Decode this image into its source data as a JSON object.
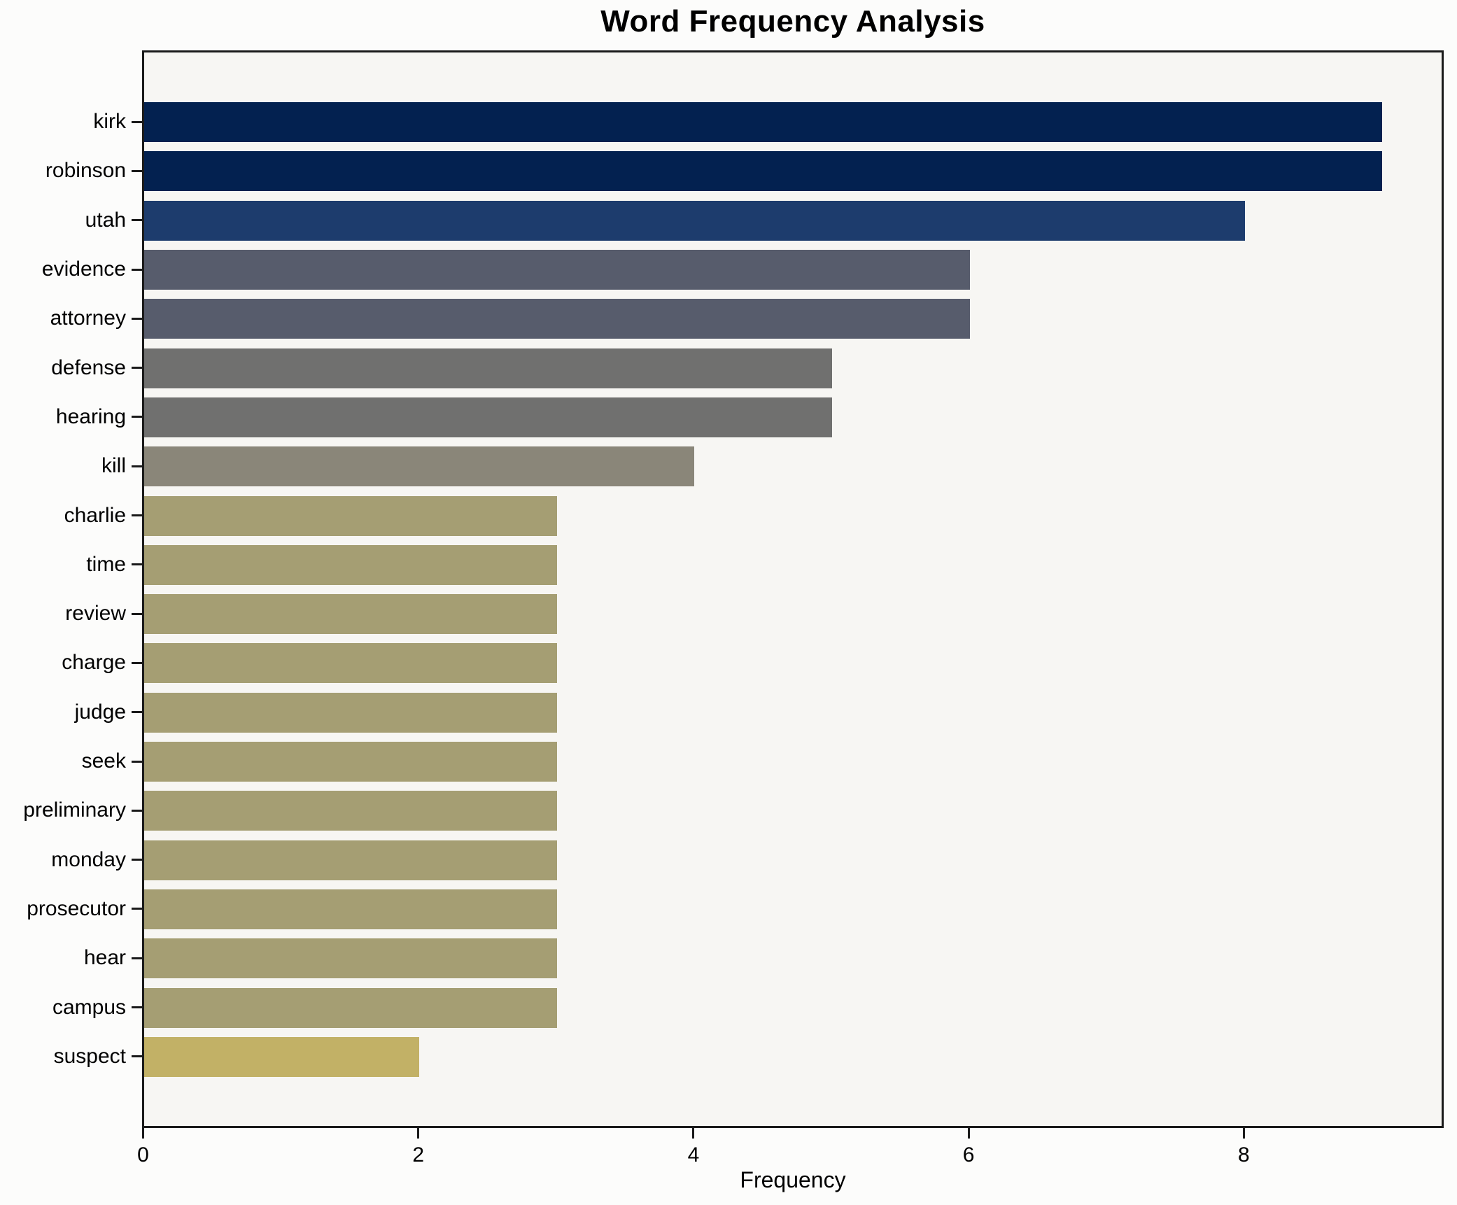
{
  "chart_data": {
    "type": "bar",
    "orientation": "horizontal",
    "title": "Word Frequency Analysis",
    "xlabel": "Frequency",
    "ylabel": "",
    "categories": [
      "kirk",
      "robinson",
      "utah",
      "evidence",
      "attorney",
      "defense",
      "hearing",
      "kill",
      "charlie",
      "time",
      "review",
      "charge",
      "judge",
      "seek",
      "preliminary",
      "monday",
      "prosecutor",
      "hear",
      "campus",
      "suspect"
    ],
    "values": [
      9,
      9,
      8,
      6,
      6,
      5,
      5,
      4,
      3,
      3,
      3,
      3,
      3,
      3,
      3,
      3,
      3,
      3,
      3,
      2
    ],
    "bar_colors": [
      "#032150",
      "#032150",
      "#1d3c6d",
      "#575c6c",
      "#575c6c",
      "#70706f",
      "#70706f",
      "#8a8679",
      "#a59e73",
      "#a59e73",
      "#a59e73",
      "#a59e73",
      "#a59e73",
      "#a59e73",
      "#a59e73",
      "#a59e73",
      "#a59e73",
      "#a59e73",
      "#a59e73",
      "#c2b166"
    ],
    "xlim": [
      0,
      9.43
    ],
    "xticks": [
      0,
      2,
      4,
      6,
      8
    ],
    "grid": false,
    "legend": false,
    "bar_relative_height": 0.8
  },
  "style": {
    "figure_bg": "#fcfcfb",
    "plot_bg": "#f7f6f3",
    "spine_color": "#1a1a1a",
    "text_color": "#000000"
  }
}
